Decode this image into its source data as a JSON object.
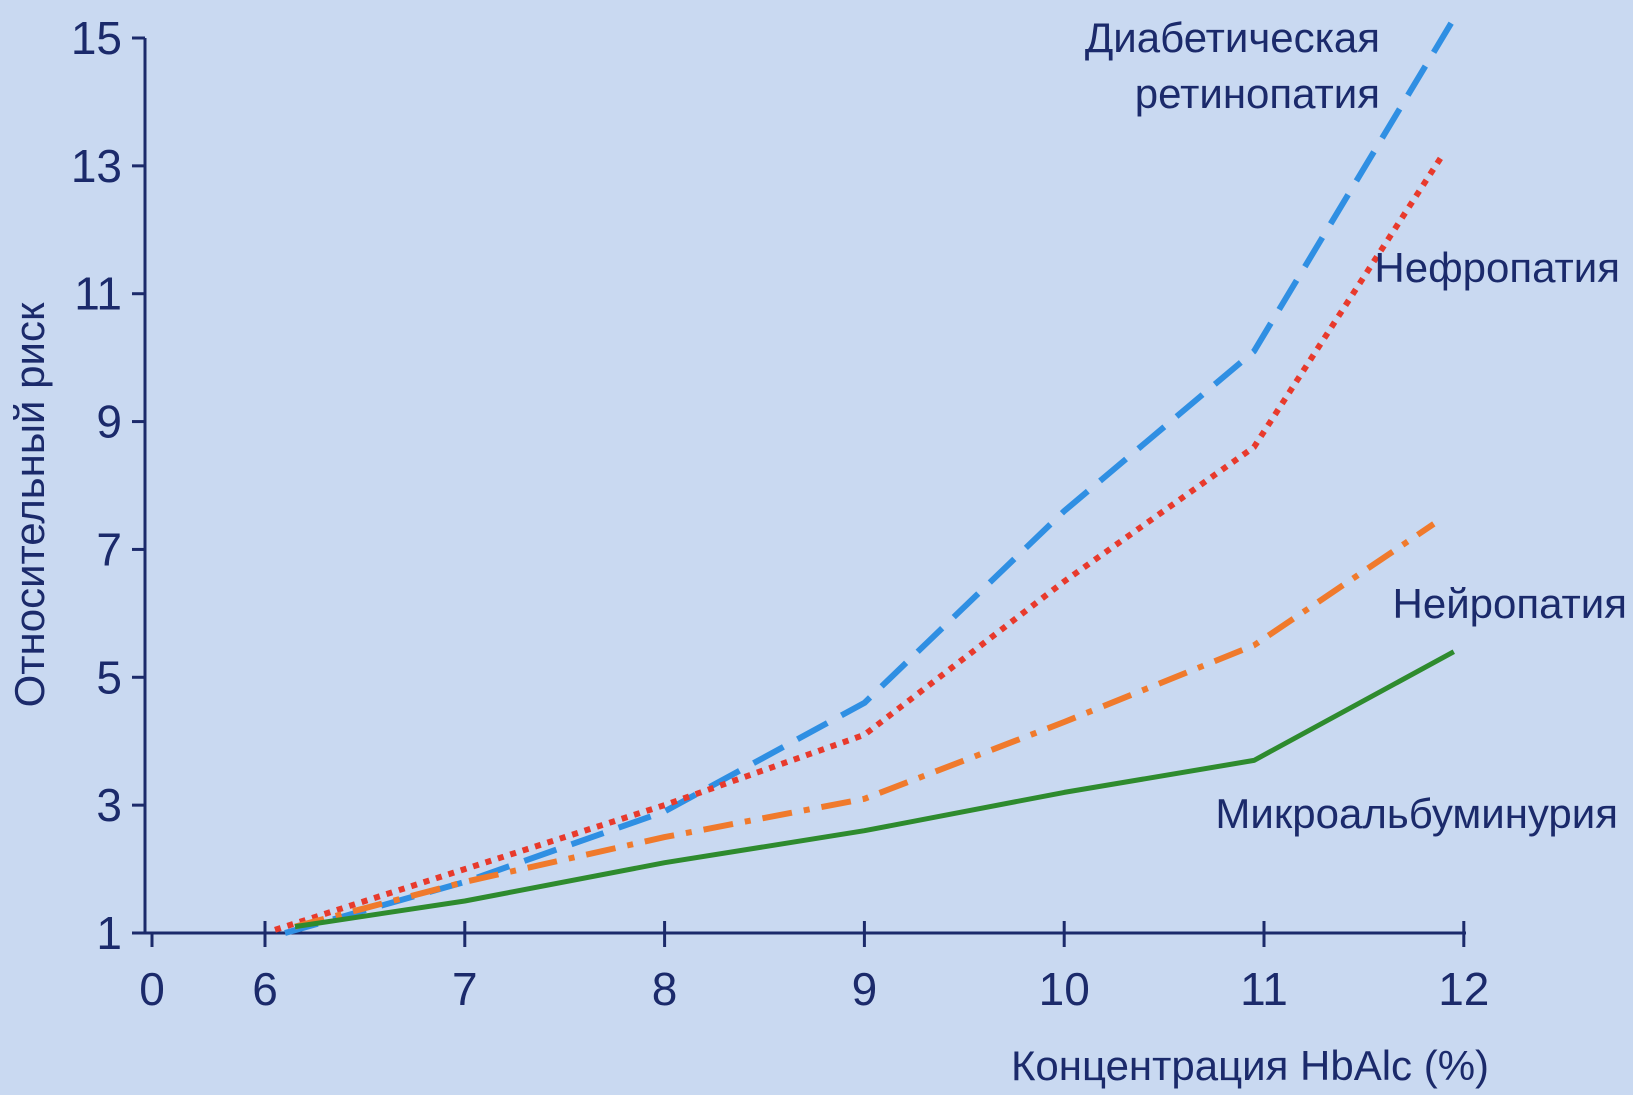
{
  "chart_data": {
    "type": "line",
    "xlabel": "Концентрация HbAlc (%)",
    "ylabel": "Относительный риск",
    "xlim": [
      5.5,
      12
    ],
    "ylim": [
      1,
      15
    ],
    "x_ticks": [
      {
        "value": 6,
        "label": "6"
      },
      {
        "value": 7,
        "label": "7"
      },
      {
        "value": 8,
        "label": "8"
      },
      {
        "value": 9,
        "label": "9"
      },
      {
        "value": 10,
        "label": "10"
      },
      {
        "value": 11,
        "label": "11"
      },
      {
        "value": 12,
        "label": "12"
      }
    ],
    "x_origin_label": "0",
    "y_ticks": [
      1,
      3,
      5,
      7,
      9,
      11,
      13,
      15
    ],
    "grid": false,
    "series": [
      {
        "name": "Диабетическая ретинопатия",
        "name_lines": [
          "Диабетическая",
          "ретинопатия"
        ],
        "color": "#2f8fe3",
        "style": "dashed",
        "x": [
          6.1,
          7,
          8,
          9,
          10,
          10.95,
          11.95
        ],
        "y": [
          1.0,
          1.8,
          2.9,
          4.6,
          7.6,
          10.1,
          15.3
        ]
      },
      {
        "name": "Нефропатия",
        "name_lines": [
          "Нефропатия"
        ],
        "color": "#e83a2c",
        "style": "dotted",
        "x": [
          6.05,
          7,
          8,
          9,
          10,
          10.95,
          11.9
        ],
        "y": [
          1.05,
          2.0,
          3.0,
          4.1,
          6.5,
          8.6,
          13.2
        ]
      },
      {
        "name": "Нейропатия",
        "name_lines": [
          "Нейропатия"
        ],
        "color": "#f07a2c",
        "style": "dashdot",
        "x": [
          6.15,
          7,
          8,
          9,
          10,
          10.95,
          11.85
        ],
        "y": [
          1.1,
          1.8,
          2.5,
          3.1,
          4.3,
          5.5,
          7.4
        ]
      },
      {
        "name": "Микроальбуминурия",
        "name_lines": [
          "Микроальбуминурия"
        ],
        "color": "#2e8b2e",
        "style": "solid",
        "x": [
          6.15,
          7,
          8,
          9,
          10,
          10.95,
          11.95
        ],
        "y": [
          1.1,
          1.5,
          2.1,
          2.6,
          3.2,
          3.7,
          5.4
        ]
      }
    ]
  }
}
